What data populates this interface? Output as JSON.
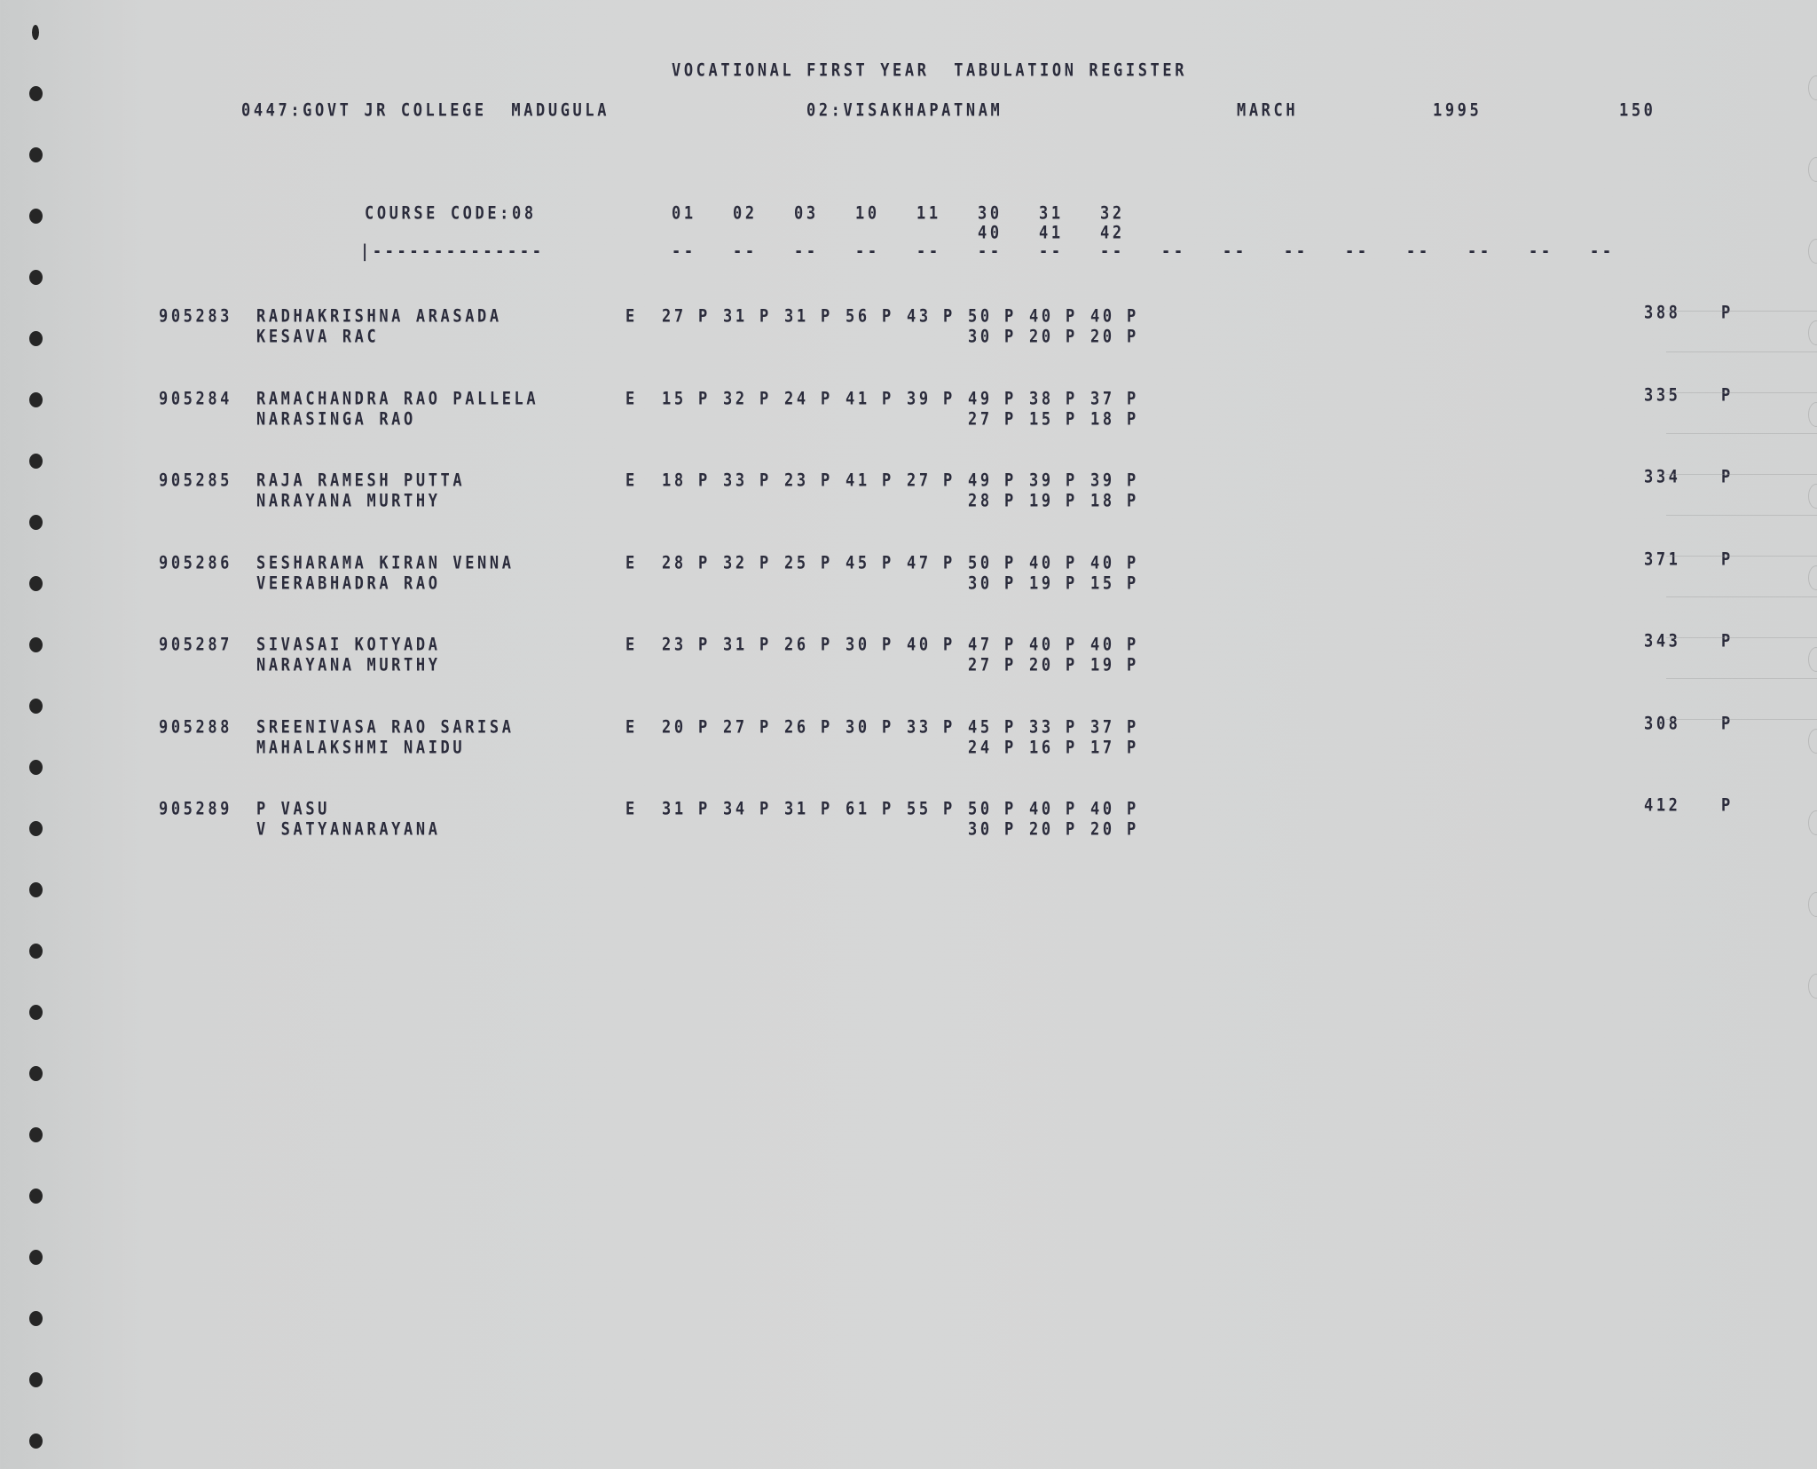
{
  "report": {
    "title": "VOCATIONAL FIRST YEAR  TABULATION REGISTER",
    "college": "0447:GOVT JR COLLEGE  MADUGULA",
    "district": "02:VISAKHAPATNAM",
    "month": "MARCH",
    "year": "1995",
    "page": "150"
  },
  "columns": {
    "course_code": "COURSE CODE:08",
    "subject_codes_line1": [
      "01",
      "02",
      "03",
      "10",
      "11",
      "30",
      "31",
      "32"
    ],
    "subject_codes_line2": [
      "40",
      "41",
      "42"
    ],
    "separator": "|--------------",
    "dash_marker": "--",
    "dash_count": 16
  },
  "students": [
    {
      "roll": "905283",
      "name": "RADHAKRISHNA ARASADA",
      "father": "KESAVA RAC",
      "exam": "E",
      "marks1": [
        [
          "27",
          "P"
        ],
        [
          "31",
          "P"
        ],
        [
          "31",
          "P"
        ],
        [
          "56",
          "P"
        ],
        [
          "43",
          "P"
        ],
        [
          "50",
          "P"
        ],
        [
          "40",
          "P"
        ],
        [
          "40",
          "P"
        ]
      ],
      "marks2": [
        [
          "30",
          "P"
        ],
        [
          "20",
          "P"
        ],
        [
          "20",
          "P"
        ]
      ],
      "total": "388",
      "result": "P"
    },
    {
      "roll": "905284",
      "name": "RAMACHANDRA RAO PALLELA",
      "father": "NARASINGA RAO",
      "exam": "E",
      "marks1": [
        [
          "15",
          "P"
        ],
        [
          "32",
          "P"
        ],
        [
          "24",
          "P"
        ],
        [
          "41",
          "P"
        ],
        [
          "39",
          "P"
        ],
        [
          "49",
          "P"
        ],
        [
          "38",
          "P"
        ],
        [
          "37",
          "P"
        ]
      ],
      "marks2": [
        [
          "27",
          "P"
        ],
        [
          "15",
          "P"
        ],
        [
          "18",
          "P"
        ]
      ],
      "total": "335",
      "result": "P"
    },
    {
      "roll": "905285",
      "name": "RAJA RAMESH PUTTA",
      "father": "NARAYANA MURTHY",
      "exam": "E",
      "marks1": [
        [
          "18",
          "P"
        ],
        [
          "33",
          "P"
        ],
        [
          "23",
          "P"
        ],
        [
          "41",
          "P"
        ],
        [
          "27",
          "P"
        ],
        [
          "49",
          "P"
        ],
        [
          "39",
          "P"
        ],
        [
          "39",
          "P"
        ]
      ],
      "marks2": [
        [
          "28",
          "P"
        ],
        [
          "19",
          "P"
        ],
        [
          "18",
          "P"
        ]
      ],
      "total": "334",
      "result": "P"
    },
    {
      "roll": "905286",
      "name": "SESHARAMA KIRAN VENNA",
      "father": "VEERABHADRA RAO",
      "exam": "E",
      "marks1": [
        [
          "28",
          "P"
        ],
        [
          "32",
          "P"
        ],
        [
          "25",
          "P"
        ],
        [
          "45",
          "P"
        ],
        [
          "47",
          "P"
        ],
        [
          "50",
          "P"
        ],
        [
          "40",
          "P"
        ],
        [
          "40",
          "P"
        ]
      ],
      "marks2": [
        [
          "30",
          "P"
        ],
        [
          "19",
          "P"
        ],
        [
          "15",
          "P"
        ]
      ],
      "total": "371",
      "result": "P"
    },
    {
      "roll": "905287",
      "name": "SIVASAI KOTYADA",
      "father": "NARAYANA MURTHY",
      "exam": "E",
      "marks1": [
        [
          "23",
          "P"
        ],
        [
          "31",
          "P"
        ],
        [
          "26",
          "P"
        ],
        [
          "30",
          "P"
        ],
        [
          "40",
          "P"
        ],
        [
          "47",
          "P"
        ],
        [
          "40",
          "P"
        ],
        [
          "40",
          "P"
        ]
      ],
      "marks2": [
        [
          "27",
          "P"
        ],
        [
          "20",
          "P"
        ],
        [
          "19",
          "P"
        ]
      ],
      "total": "343",
      "result": "P"
    },
    {
      "roll": "905288",
      "name": "SREENIVASA RAO SARISA",
      "father": "MAHALAKSHMI NAIDU",
      "exam": "E",
      "marks1": [
        [
          "20",
          "P"
        ],
        [
          "27",
          "P"
        ],
        [
          "26",
          "P"
        ],
        [
          "30",
          "P"
        ],
        [
          "33",
          "P"
        ],
        [
          "45",
          "P"
        ],
        [
          "33",
          "P"
        ],
        [
          "37",
          "P"
        ]
      ],
      "marks2": [
        [
          "24",
          "P"
        ],
        [
          "16",
          "P"
        ],
        [
          "17",
          "P"
        ]
      ],
      "total": "308",
      "result": "P"
    },
    {
      "roll": "905289",
      "name": "P VASU",
      "father": "V SATYANARAYANA",
      "exam": "E",
      "marks1": [
        [
          "31",
          "P"
        ],
        [
          "34",
          "P"
        ],
        [
          "31",
          "P"
        ],
        [
          "61",
          "P"
        ],
        [
          "55",
          "P"
        ],
        [
          "50",
          "P"
        ],
        [
          "40",
          "P"
        ],
        [
          "40",
          "P"
        ]
      ],
      "marks2": [
        [
          "30",
          "P"
        ],
        [
          "20",
          "P"
        ],
        [
          "20",
          "P"
        ]
      ],
      "total": "412",
      "result": "P"
    }
  ],
  "colors": {
    "paper": "#d6d7d7",
    "ink": "#2b2c3c",
    "holes": "#262626"
  }
}
